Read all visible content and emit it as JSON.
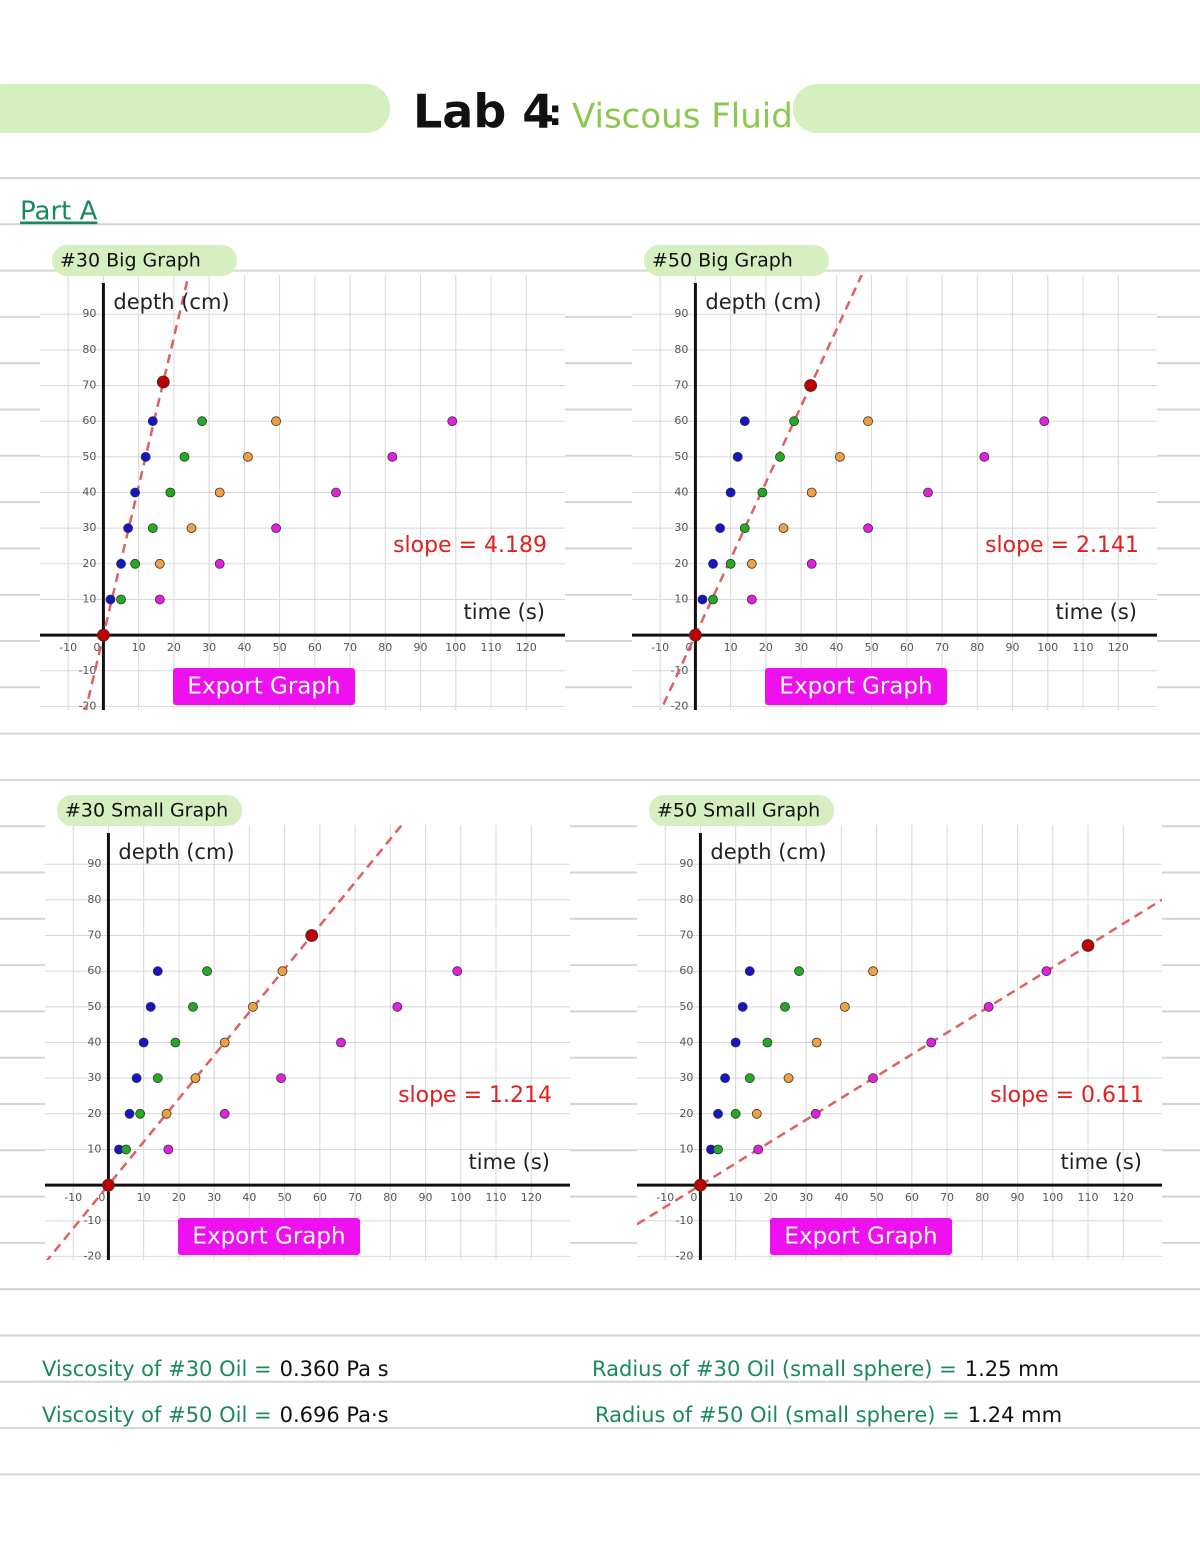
{
  "header": {
    "title": "Lab 4",
    "separator": ":",
    "subtitle": "Viscous Fluid"
  },
  "section": "Part A",
  "chart_data": [
    {
      "type": "scatter",
      "title": "#30 Big Graph",
      "x_label": "time (s)",
      "y_label": "depth (cm)",
      "annotation": "slope = 4.189",
      "button": "Export Graph",
      "xlim": [
        -18,
        131
      ],
      "ylim": [
        -21,
        101
      ],
      "xticks": [
        -10,
        0,
        10,
        20,
        30,
        40,
        50,
        60,
        70,
        80,
        90,
        100,
        110,
        120
      ],
      "yticks": [
        -20,
        -10,
        10,
        20,
        30,
        40,
        50,
        60,
        70,
        80,
        90
      ],
      "grid": true,
      "series": [
        {
          "color": "#1414c8",
          "x": [
            2,
            5,
            7,
            9,
            12,
            14
          ],
          "values": [
            10,
            20,
            30,
            40,
            50,
            60
          ]
        },
        {
          "color": "#22aa22",
          "x": [
            5,
            9,
            14,
            19,
            23,
            28
          ],
          "values": [
            10,
            20,
            30,
            40,
            50,
            60
          ]
        },
        {
          "color": "#f0a040",
          "x": [
            16,
            25,
            33,
            41,
            49
          ],
          "values": [
            20,
            30,
            40,
            50,
            60
          ]
        },
        {
          "color": "#e020e0",
          "x": [
            16,
            33,
            49,
            66,
            82,
            99
          ],
          "values": [
            10,
            20,
            30,
            40,
            50,
            60
          ]
        },
        {
          "color": "#c00000",
          "x": [
            0,
            17
          ],
          "values": [
            0,
            71
          ],
          "fit_line": true
        }
      ]
    },
    {
      "type": "scatter",
      "title": "#50 Big Graph",
      "x_label": "time (s)",
      "y_label": "depth (cm)",
      "annotation": "slope = 2.141",
      "button": "Export Graph",
      "xlim": [
        -18,
        131
      ],
      "ylim": [
        -21,
        101
      ],
      "xticks": [
        -10,
        0,
        10,
        20,
        30,
        40,
        50,
        60,
        70,
        80,
        90,
        100,
        110,
        120
      ],
      "yticks": [
        -20,
        -10,
        10,
        20,
        30,
        40,
        50,
        60,
        70,
        80,
        90
      ],
      "grid": true,
      "series": [
        {
          "color": "#1414c8",
          "x": [
            2,
            5,
            7,
            10,
            12,
            14
          ],
          "values": [
            10,
            20,
            30,
            40,
            50,
            60
          ]
        },
        {
          "color": "#22aa22",
          "x": [
            5,
            10,
            14,
            19,
            24,
            28
          ],
          "values": [
            10,
            20,
            30,
            40,
            50,
            60
          ]
        },
        {
          "color": "#f0a040",
          "x": [
            16,
            25,
            33,
            41,
            49
          ],
          "values": [
            20,
            30,
            40,
            50,
            60
          ]
        },
        {
          "color": "#e020e0",
          "x": [
            16,
            33,
            49,
            66,
            82,
            99
          ],
          "values": [
            10,
            20,
            30,
            40,
            50,
            60
          ]
        },
        {
          "color": "#c00000",
          "x": [
            0,
            32.7
          ],
          "values": [
            0,
            70
          ],
          "fit_line": true
        }
      ]
    },
    {
      "type": "scatter",
      "title": "#30 Small Graph",
      "x_label": "time (s)",
      "y_label": "depth (cm)",
      "annotation": "slope = 1.214",
      "button": "Export Graph",
      "xlim": [
        -18,
        131
      ],
      "ylim": [
        -21,
        101
      ],
      "xticks": [
        -10,
        0,
        10,
        20,
        30,
        40,
        50,
        60,
        70,
        80,
        90,
        100,
        110,
        120
      ],
      "yticks": [
        -20,
        -10,
        10,
        20,
        30,
        40,
        50,
        60,
        70,
        80,
        90
      ],
      "grid": true,
      "series": [
        {
          "color": "#1414c8",
          "x": [
            3,
            6,
            8,
            10,
            12,
            14
          ],
          "values": [
            10,
            20,
            30,
            40,
            50,
            60
          ]
        },
        {
          "color": "#22aa22",
          "x": [
            5,
            9,
            14,
            19,
            24,
            28
          ],
          "values": [
            10,
            20,
            30,
            40,
            50,
            60
          ]
        },
        {
          "color": "#f0a040",
          "x": [
            16.5,
            24.7,
            33,
            41,
            49.4
          ],
          "values": [
            20,
            30,
            40,
            50,
            60
          ]
        },
        {
          "color": "#e020e0",
          "x": [
            17,
            33,
            49,
            66,
            82,
            99
          ],
          "values": [
            10,
            20,
            30,
            40,
            50,
            60
          ]
        },
        {
          "color": "#c00000",
          "x": [
            0,
            57.7
          ],
          "values": [
            0,
            70
          ],
          "fit_line": true
        }
      ]
    },
    {
      "type": "scatter",
      "title": "#50 Small Graph",
      "x_label": "time (s)",
      "y_label": "depth (cm)",
      "annotation": "slope = 0.611",
      "button": "Export Graph",
      "xlim": [
        -18,
        131
      ],
      "ylim": [
        -21,
        101
      ],
      "xticks": [
        -10,
        0,
        10,
        20,
        30,
        40,
        50,
        60,
        70,
        80,
        90,
        100,
        110,
        120
      ],
      "yticks": [
        -20,
        -10,
        10,
        20,
        30,
        40,
        50,
        60,
        70,
        80,
        90
      ],
      "grid": true,
      "series": [
        {
          "color": "#1414c8",
          "x": [
            3,
            5,
            7,
            10,
            12,
            14
          ],
          "values": [
            10,
            20,
            30,
            40,
            50,
            60
          ]
        },
        {
          "color": "#22aa22",
          "x": [
            5,
            10,
            14,
            19,
            24,
            28
          ],
          "values": [
            10,
            20,
            30,
            40,
            50,
            60
          ]
        },
        {
          "color": "#f0a040",
          "x": [
            16,
            25,
            33,
            41,
            49
          ],
          "values": [
            20,
            30,
            40,
            50,
            60
          ]
        },
        {
          "color": "#e020e0",
          "x": [
            16.4,
            32.7,
            49,
            65.5,
            81.8,
            98.2
          ],
          "values": [
            10,
            20,
            30,
            40,
            50,
            60
          ]
        },
        {
          "color": "#c00000",
          "x": [
            0,
            110
          ],
          "values": [
            0,
            67.2
          ],
          "fit_line": true
        }
      ]
    }
  ],
  "notes": [
    {
      "label": "Viscosity of #30 Oil =",
      "value": "0.360 Pa s"
    },
    {
      "label": "Radius of #30 Oil (small sphere) =",
      "value": "1.25 mm"
    },
    {
      "label": "Viscosity of #50 Oil =",
      "value": "0.696 Pa·s"
    },
    {
      "label": "Radius of #50 Oil (small sphere) =",
      "value": "1.24 mm"
    }
  ]
}
